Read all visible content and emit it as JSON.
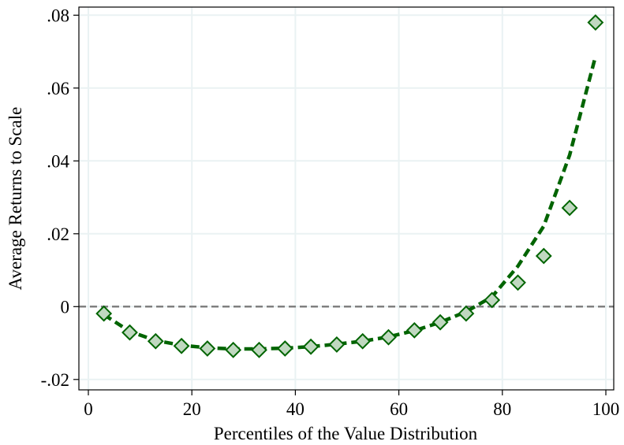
{
  "chart_data": {
    "type": "scatter",
    "title": "",
    "xlabel": "Percentiles of the Value Distribution",
    "ylabel": "Average Returns to Scale",
    "xlim": [
      0,
      100
    ],
    "ylim": [
      -0.02,
      0.08
    ],
    "xticks": [
      0,
      20,
      40,
      60,
      80,
      100
    ],
    "xtick_labels": [
      "0",
      "20",
      "40",
      "60",
      "80",
      "100"
    ],
    "yticks": [
      -0.02,
      0,
      0.02,
      0.04,
      0.06,
      0.08
    ],
    "ytick_labels": [
      "-.02",
      "0",
      ".02",
      ".04",
      ".06",
      ".08"
    ],
    "grid": true,
    "reference_line": {
      "y": 0,
      "style": "dashed",
      "color": "#808080"
    },
    "series": [
      {
        "kind": "scatter",
        "marker": "diamond",
        "color": "#006400",
        "fill": "#c0d8c0",
        "x": [
          3,
          8,
          13,
          18,
          23,
          28,
          33,
          38,
          43,
          48,
          53,
          58,
          63,
          68,
          73,
          78,
          83,
          88,
          93,
          98
        ],
        "y": [
          -0.0019,
          -0.0071,
          -0.0095,
          -0.0108,
          -0.0115,
          -0.0119,
          -0.0119,
          -0.0115,
          -0.011,
          -0.0104,
          -0.0095,
          -0.0084,
          -0.0065,
          -0.0043,
          -0.0019,
          0.0018,
          0.0066,
          0.0139,
          0.0271,
          0.078
        ]
      },
      {
        "kind": "line",
        "style": "dashed",
        "color": "#006400",
        "x": [
          3,
          8,
          13,
          18,
          23,
          28,
          33,
          38,
          43,
          48,
          53,
          58,
          63,
          68,
          73,
          78,
          83,
          88,
          93,
          98
        ],
        "y": [
          -0.0022,
          -0.0068,
          -0.0093,
          -0.0106,
          -0.0113,
          -0.0116,
          -0.0116,
          -0.0114,
          -0.011,
          -0.0103,
          -0.0095,
          -0.0083,
          -0.0066,
          -0.0043,
          -0.0014,
          0.0027,
          0.0111,
          0.0221,
          0.0416,
          0.0687
        ]
      }
    ]
  }
}
